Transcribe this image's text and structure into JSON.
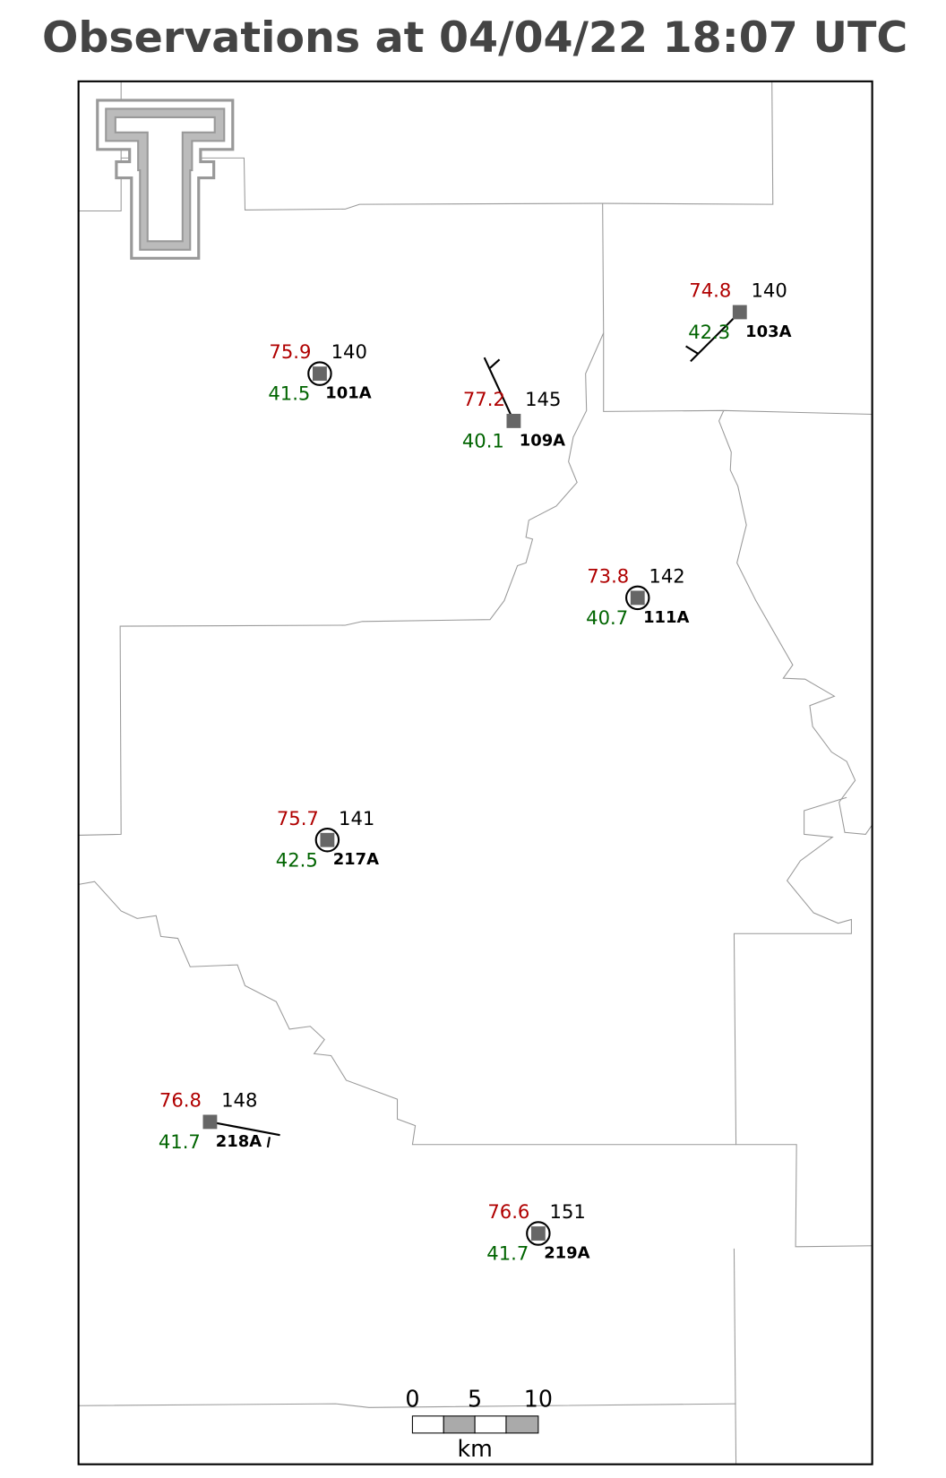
{
  "title": "Observations at 04/04/22 18:07 UTC",
  "stations": [
    {
      "id": "101A",
      "temperature": 75.9,
      "dewpoint": 41.5,
      "pressure": 140
    },
    {
      "id": "109A",
      "temperature": 77.2,
      "dewpoint": 40.1,
      "pressure": 145
    },
    {
      "id": "103A",
      "temperature": 74.8,
      "dewpoint": 42.3,
      "pressure": 140
    },
    {
      "id": "111A",
      "temperature": 73.8,
      "dewpoint": 40.7,
      "pressure": 142
    },
    {
      "id": "217A",
      "temperature": 75.7,
      "dewpoint": 42.5,
      "pressure": 141
    },
    {
      "id": "218A",
      "temperature": 76.8,
      "dewpoint": 41.7,
      "pressure": 148
    },
    {
      "id": "219A",
      "temperature": 76.6,
      "dewpoint": 41.7,
      "pressure": 151
    }
  ],
  "scale_bar": {
    "ticks": [
      0,
      5,
      10
    ],
    "unit": "km"
  }
}
